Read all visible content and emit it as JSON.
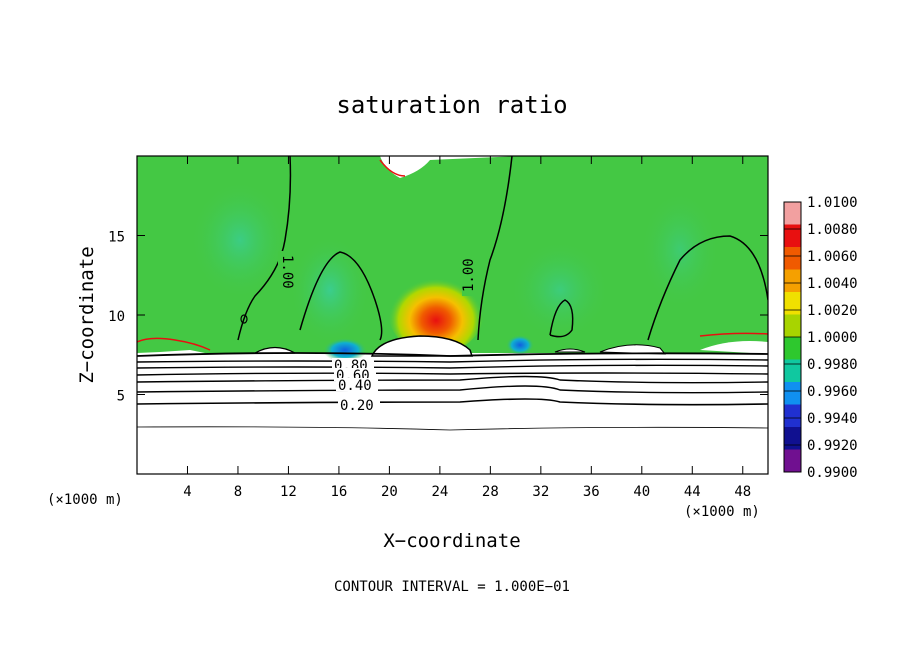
{
  "chart_data": {
    "type": "heatmap",
    "title": "saturation ratio",
    "xlabel": "X−coordinate",
    "ylabel": "Z−coordinate",
    "x_unit": "(×1000 m)",
    "xlim": [
      0,
      50
    ],
    "ylim": [
      0,
      20
    ],
    "x_ticks": [
      4,
      8,
      12,
      16,
      20,
      24,
      28,
      32,
      36,
      40,
      44,
      48
    ],
    "y_ticks": [
      5,
      10,
      15
    ],
    "colorbar": {
      "levels": [
        "1.0100",
        "1.0080",
        "1.0060",
        "1.0040",
        "1.0020",
        "1.0000",
        "0.9980",
        "0.9960",
        "0.9940",
        "0.9920",
        "0.9900"
      ],
      "colors": [
        "#f2a0a0",
        "#e81010",
        "#f05a00",
        "#f5a000",
        "#f0e000",
        "#a8d400",
        "#2ec82e",
        "#10c8a0",
        "#1090f0",
        "#2030d0",
        "#101090",
        "#701090"
      ]
    },
    "contour_labels": [
      "1.00",
      "1.00",
      "0.80",
      "0.60",
      "0.40",
      "0.20"
    ],
    "contour_interval": "1.000E−01",
    "footer": "CONTOUR INTERVAL = 1.000E−01",
    "background_value_color": "#44c844",
    "max_region": {
      "x": 24,
      "z": 9.5,
      "value": 1.006
    }
  }
}
